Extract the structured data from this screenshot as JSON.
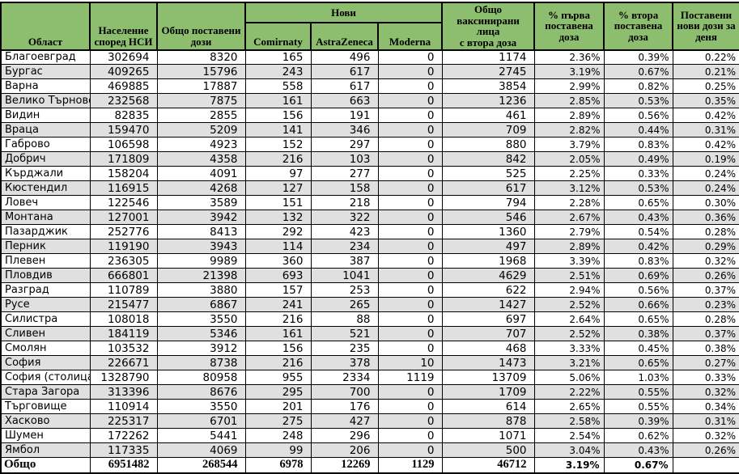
{
  "colors": {
    "header_green": "#8DBE6F",
    "stripe_gray": "#E0E0E0",
    "border_black": "#000000",
    "row_white": "#FFFFFF"
  },
  "table": {
    "header": {
      "region": "Област",
      "population": "Население\nспоред НСИ",
      "total_doses": "Общо поставени\nдози",
      "new_group": "Нови",
      "vaccines": [
        "Comirnaty",
        "AstraZeneca",
        "Moderna"
      ],
      "second_dose_total": "Общо\nваксинирани лица\nс втора доза",
      "pct_first_dose": "% първа\nпоставена\nдоза",
      "pct_second_dose": "% втора\nпоставена\nдоза",
      "new_daily": "Поставени\nнови дози за\nденя"
    },
    "rows": [
      [
        "Благоевград",
        "302694",
        "8320",
        "165",
        "496",
        "0",
        "1174",
        "2.36%",
        "0.39%",
        "0.22%"
      ],
      [
        "Бургас",
        "409265",
        "15796",
        "243",
        "617",
        "0",
        "2745",
        "3.19%",
        "0.67%",
        "0.21%"
      ],
      [
        "Варна",
        "469885",
        "17887",
        "558",
        "617",
        "0",
        "3854",
        "2.99%",
        "0.82%",
        "0.25%"
      ],
      [
        "Велико Търново",
        "232568",
        "7875",
        "161",
        "663",
        "0",
        "1236",
        "2.85%",
        "0.53%",
        "0.35%"
      ],
      [
        "Видин",
        "82835",
        "2855",
        "156",
        "191",
        "0",
        "461",
        "2.89%",
        "0.56%",
        "0.42%"
      ],
      [
        "Враца",
        "159470",
        "5209",
        "141",
        "346",
        "0",
        "709",
        "2.82%",
        "0.44%",
        "0.31%"
      ],
      [
        "Габрово",
        "106598",
        "4923",
        "152",
        "297",
        "0",
        "880",
        "3.79%",
        "0.83%",
        "0.42%"
      ],
      [
        "Добрич",
        "171809",
        "4358",
        "216",
        "103",
        "0",
        "842",
        "2.05%",
        "0.49%",
        "0.19%"
      ],
      [
        "Кърджали",
        "158204",
        "4091",
        "97",
        "277",
        "0",
        "525",
        "2.25%",
        "0.33%",
        "0.24%"
      ],
      [
        "Кюстендил",
        "116915",
        "4268",
        "127",
        "158",
        "0",
        "617",
        "3.12%",
        "0.53%",
        "0.24%"
      ],
      [
        "Ловеч",
        "122546",
        "3589",
        "151",
        "218",
        "0",
        "794",
        "2.28%",
        "0.65%",
        "0.30%"
      ],
      [
        "Монтана",
        "127001",
        "3942",
        "132",
        "322",
        "0",
        "546",
        "2.67%",
        "0.43%",
        "0.36%"
      ],
      [
        "Пазарджик",
        "252776",
        "8413",
        "292",
        "423",
        "0",
        "1360",
        "2.79%",
        "0.54%",
        "0.28%"
      ],
      [
        "Перник",
        "119190",
        "3943",
        "114",
        "234",
        "0",
        "497",
        "2.89%",
        "0.42%",
        "0.29%"
      ],
      [
        "Плевен",
        "236305",
        "9989",
        "360",
        "387",
        "0",
        "1968",
        "3.39%",
        "0.83%",
        "0.32%"
      ],
      [
        "Пловдив",
        "666801",
        "21398",
        "693",
        "1041",
        "0",
        "4629",
        "2.51%",
        "0.69%",
        "0.26%"
      ],
      [
        "Разград",
        "110789",
        "3880",
        "157",
        "253",
        "0",
        "622",
        "2.94%",
        "0.56%",
        "0.37%"
      ],
      [
        "Русе",
        "215477",
        "6867",
        "241",
        "265",
        "0",
        "1427",
        "2.52%",
        "0.66%",
        "0.23%"
      ],
      [
        "Силистра",
        "108018",
        "3550",
        "216",
        "88",
        "0",
        "697",
        "2.64%",
        "0.65%",
        "0.28%"
      ],
      [
        "Сливен",
        "184119",
        "5346",
        "161",
        "521",
        "0",
        "707",
        "2.52%",
        "0.38%",
        "0.37%"
      ],
      [
        "Смолян",
        "103532",
        "3912",
        "156",
        "235",
        "0",
        "468",
        "3.33%",
        "0.45%",
        "0.38%"
      ],
      [
        "София",
        "226671",
        "8738",
        "216",
        "378",
        "10",
        "1473",
        "3.21%",
        "0.65%",
        "0.27%"
      ],
      [
        "София (столица)",
        "1328790",
        "80958",
        "955",
        "2334",
        "1119",
        "13709",
        "5.06%",
        "1.03%",
        "0.33%"
      ],
      [
        "Стара Загора",
        "313396",
        "8676",
        "295",
        "700",
        "0",
        "1709",
        "2.22%",
        "0.55%",
        "0.32%"
      ],
      [
        "Търговище",
        "110914",
        "3550",
        "201",
        "176",
        "0",
        "614",
        "2.65%",
        "0.55%",
        "0.34%"
      ],
      [
        "Хасково",
        "225317",
        "6701",
        "275",
        "427",
        "0",
        "878",
        "2.58%",
        "0.39%",
        "0.31%"
      ],
      [
        "Шумен",
        "172262",
        "5441",
        "248",
        "296",
        "0",
        "1071",
        "2.54%",
        "0.62%",
        "0.32%"
      ],
      [
        "Ямбол",
        "117335",
        "4069",
        "99",
        "206",
        "0",
        "500",
        "3.04%",
        "0.43%",
        "0.26%"
      ]
    ],
    "total": [
      "Общо",
      "6951482",
      "268544",
      "6978",
      "12269",
      "1129",
      "46712",
      "3.19%",
      "0.67%",
      ""
    ]
  }
}
